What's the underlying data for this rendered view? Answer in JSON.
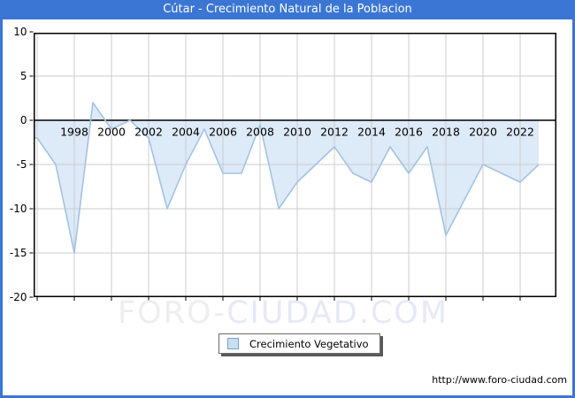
{
  "title": "Cútar - Crecimiento Natural de la Poblacion",
  "legend": {
    "label": "Crecimiento Vegetativo"
  },
  "watermark": {
    "part1": "FORO-",
    "part2": "CIUDAD.COM"
  },
  "footer": {
    "url": "http://www.foro-ciudad.com"
  },
  "colors": {
    "accent_blue": "#3b76d4",
    "series_line": "#a2c3e3",
    "series_fill": "#ddeaf8",
    "grid": "#cccccc",
    "axis": "#000000",
    "watermark_gray": "#eeeef1",
    "watermark_blue": "#e6e9f7",
    "legend_swatch_fill": "#c9def2",
    "legend_swatch_border": "#7aa0c8"
  },
  "chart_data": {
    "type": "area",
    "title": "Cútar - Crecimiento Natural de la Poblacion",
    "xlabel": "",
    "ylabel": "",
    "ylim": [
      -20,
      10
    ],
    "grid": true,
    "baseline": 0,
    "legend_position": "bottom-center",
    "xticks": [
      1998,
      2000,
      2002,
      2004,
      2006,
      2008,
      2010,
      2012,
      2014,
      2016,
      2018,
      2020,
      2022
    ],
    "yticks": [
      10,
      5,
      0,
      -5,
      -10,
      -15,
      -20
    ],
    "series": [
      {
        "name": "Crecimiento Vegetativo",
        "x": [
          1996,
          1997,
          1998,
          1999,
          2000,
          2001,
          2002,
          2003,
          2004,
          2005,
          2006,
          2007,
          2008,
          2009,
          2010,
          2011,
          2012,
          2013,
          2014,
          2015,
          2016,
          2017,
          2018,
          2019,
          2020,
          2021,
          2022,
          2023
        ],
        "values": [
          -2,
          -5,
          -15,
          2,
          -1,
          0,
          -2,
          -10,
          -5,
          -1,
          -6,
          -6,
          -0.5,
          -10,
          -7,
          -5,
          -3,
          -6,
          -7,
          -3,
          -6,
          -3,
          -13,
          -9,
          -5,
          -6,
          -7,
          -5
        ]
      }
    ]
  }
}
